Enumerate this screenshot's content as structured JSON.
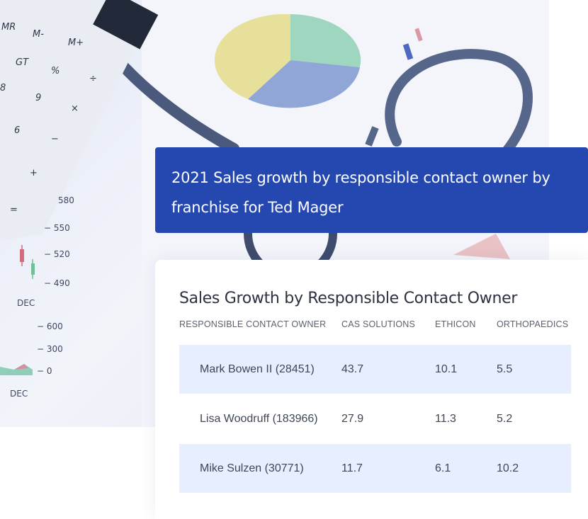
{
  "banner": {
    "line1": "2021 Sales growth by responsible contact owner by",
    "line2": "franchise for Ted Mager"
  },
  "table": {
    "title": "Sales Growth by Responsible Contact Owner",
    "columns": [
      "RESPONSIBLE CONTACT OWNER",
      "CAS SOLUTIONS",
      "ETHICON",
      "ORTHOPAEDICS"
    ],
    "rows": [
      [
        "Mark Bowen II (28451)",
        "43.7",
        "10.1",
        "5.5"
      ],
      [
        "Lisa Woodruff (183966)",
        "27.9",
        "11.3",
        "5.2"
      ],
      [
        "Mike Sulzen (30771)",
        "11.7",
        "6.1",
        "10.2"
      ]
    ]
  },
  "background": {
    "calculator_keys": [
      "MR",
      "M-",
      "M+",
      "GT",
      "%",
      "÷",
      "8",
      "9",
      "×",
      "6",
      "−",
      "+",
      "="
    ],
    "chart_ticks": [
      "580",
      "550",
      "520",
      "490",
      "DEC",
      "600",
      "300",
      "0",
      "DEC"
    ]
  },
  "colors": {
    "banner_bg": "#2447b0",
    "row_highlight": "#e7eeff",
    "text_dark": "#2c3140"
  }
}
